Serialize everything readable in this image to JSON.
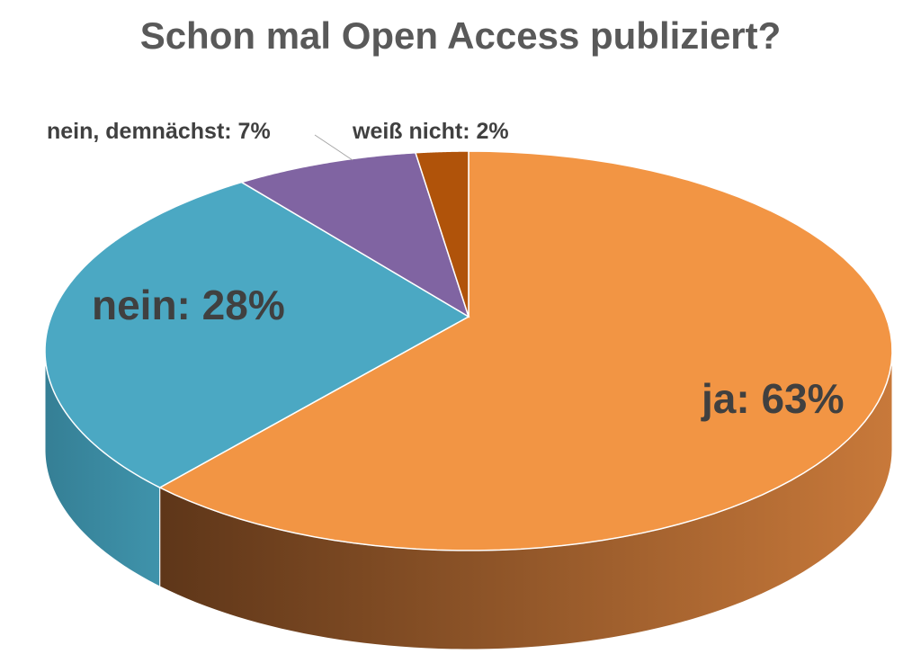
{
  "chart_data": {
    "type": "pie",
    "style": "3d",
    "title": "Schon mal Open Access publiziert?",
    "slices": [
      {
        "name": "ja",
        "value": 63,
        "label": "ja: 63%",
        "color": "#F29544",
        "side_colors": [
          "#C8793A",
          "#5E3619"
        ]
      },
      {
        "name": "nein",
        "value": 28,
        "label": "nein: 28%",
        "color": "#4BA8C3",
        "side_colors": [
          "#3F93AB",
          "#357F95"
        ]
      },
      {
        "name": "nein, demnächst",
        "value": 7,
        "label": "nein, demnächst: 7%",
        "color": "#8064A2",
        "side_colors": [
          "#6A5287",
          "#6A5287"
        ]
      },
      {
        "name": "weiß nicht",
        "value": 2,
        "label": "weiß nicht: 2%",
        "color": "#B0530A",
        "side_colors": [
          "#8A4108",
          "#8A4108"
        ]
      }
    ]
  }
}
